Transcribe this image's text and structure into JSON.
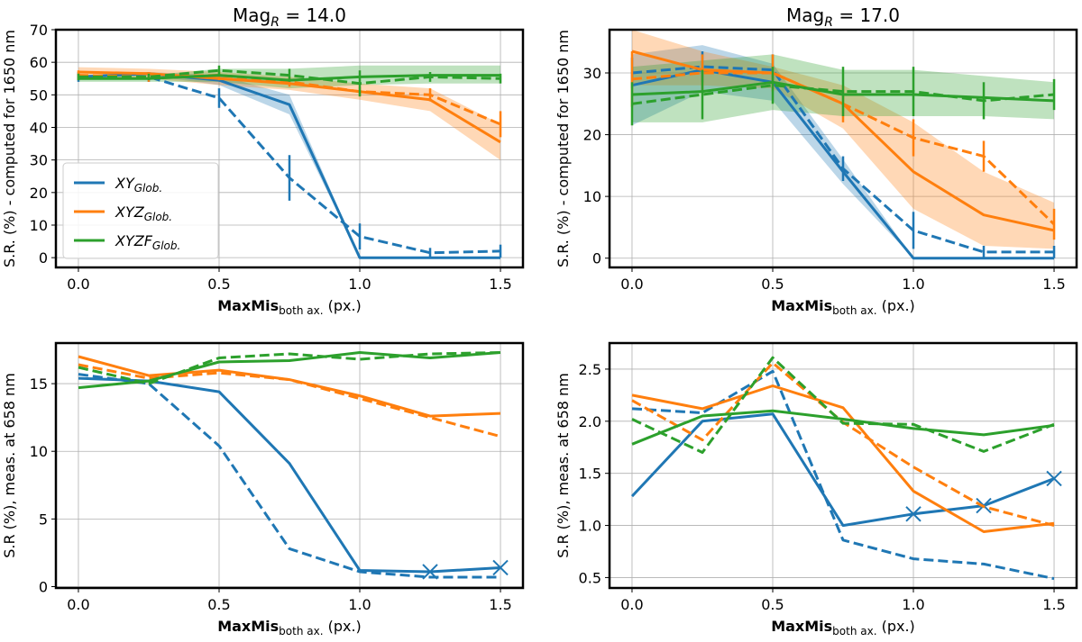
{
  "colors": {
    "blue": "#1f77b4",
    "orange": "#ff7f0e",
    "green": "#2ca02c",
    "grid": "#b0b0b0"
  },
  "legend": [
    {
      "name": "XY",
      "sub": "Glob.",
      "color": "#1f77b4"
    },
    {
      "name": "XYZ",
      "sub": "Glob.",
      "color": "#ff7f0e"
    },
    {
      "name": "XYZF",
      "sub": "Glob.",
      "color": "#2ca02c"
    }
  ],
  "chart_data": [
    {
      "id": "top-left",
      "type": "line",
      "title": {
        "main": "Mag",
        "sub": "R",
        "rest": " = 14.0"
      },
      "xlabel": {
        "bold": "MaxMis",
        "sub": "both ax.",
        "rest": " (px.)"
      },
      "ylabel": "S.R. (%) - computed for 1650 nm",
      "xlim": [
        -0.08,
        1.58
      ],
      "ylim": [
        -3,
        70
      ],
      "xticks": [
        0.0,
        0.5,
        1.0,
        1.5
      ],
      "xtick_labels": [
        "0.0",
        "0.5",
        "1.0",
        "1.5"
      ],
      "yticks": [
        0,
        10,
        20,
        30,
        40,
        50,
        60,
        70
      ],
      "ytick_labels": [
        "0",
        "10",
        "20",
        "30",
        "40",
        "50",
        "60",
        "70"
      ],
      "x": [
        0.0,
        0.25,
        0.5,
        0.75,
        1.0,
        1.25,
        1.5
      ],
      "series": [
        {
          "name": "XY solid",
          "color": "blue",
          "dashed": false,
          "values": [
            55.5,
            56.5,
            54.5,
            47,
            0,
            0,
            0
          ],
          "band_lo": [
            55,
            56,
            53,
            44,
            0,
            0,
            0
          ],
          "band_hi": [
            56,
            57,
            56,
            50,
            0,
            0,
            0
          ]
        },
        {
          "name": "XY dashed",
          "color": "blue",
          "dashed": true,
          "values": [
            55.5,
            55.5,
            49,
            24.5,
            6.5,
            1.5,
            2
          ],
          "err": [
            1.5,
            1.5,
            3,
            7,
            4,
            1.5,
            2
          ]
        },
        {
          "name": "XYZ solid",
          "color": "orange",
          "dashed": false,
          "values": [
            57,
            56.5,
            55,
            53.5,
            51,
            48.5,
            35.5
          ],
          "band_lo": [
            55.5,
            55,
            53,
            51.5,
            48.5,
            45,
            30
          ],
          "band_hi": [
            58.5,
            58,
            57,
            55.5,
            53.5,
            52,
            41
          ]
        },
        {
          "name": "XYZ dashed",
          "color": "orange",
          "dashed": true,
          "values": [
            56,
            55.5,
            56,
            54,
            51,
            50,
            41
          ],
          "err": [
            1.5,
            1.5,
            1.5,
            1.5,
            1.5,
            2,
            4
          ]
        },
        {
          "name": "XYZF solid",
          "color": "green",
          "dashed": false,
          "values": [
            55,
            55,
            56,
            54.5,
            55.5,
            56,
            56
          ],
          "band_lo": [
            54,
            54,
            54,
            52,
            53,
            53.5,
            53.5
          ],
          "band_hi": [
            56,
            56,
            58,
            58,
            59,
            59,
            59
          ]
        },
        {
          "name": "XYZF dashed",
          "color": "green",
          "dashed": true,
          "values": [
            55.5,
            55.5,
            57.5,
            56,
            53.5,
            55.5,
            55
          ],
          "err": [
            1,
            1,
            1.5,
            2,
            4,
            1.5,
            1.5
          ]
        }
      ],
      "legend": true
    },
    {
      "id": "top-right",
      "type": "line",
      "title": {
        "main": "Mag",
        "sub": "R",
        "rest": " = 17.0"
      },
      "xlabel": {
        "bold": "MaxMis",
        "sub": "both ax.",
        "rest": " (px.)"
      },
      "ylabel": "S.R. (%) - computed for 1650 nm",
      "xlim": [
        -0.08,
        1.58
      ],
      "ylim": [
        -1.5,
        37
      ],
      "xticks": [
        0.0,
        0.5,
        1.0,
        1.5
      ],
      "xtick_labels": [
        "0.0",
        "0.5",
        "1.0",
        "1.5"
      ],
      "yticks": [
        0,
        10,
        20,
        30
      ],
      "ytick_labels": [
        "0",
        "10",
        "20",
        "30"
      ],
      "x": [
        0.0,
        0.25,
        0.5,
        0.75,
        1.0,
        1.25,
        1.5
      ],
      "series": [
        {
          "name": "XY solid",
          "color": "blue",
          "dashed": false,
          "values": [
            28,
            30.5,
            28.5,
            14,
            0,
            0,
            0
          ],
          "band_lo": [
            21.5,
            27,
            25.5,
            12,
            0,
            0,
            0
          ],
          "band_hi": [
            33,
            34.5,
            31.5,
            16,
            0,
            0,
            0
          ]
        },
        {
          "name": "XY dashed",
          "color": "blue",
          "dashed": true,
          "values": [
            30,
            31,
            30.5,
            14.5,
            4.5,
            1,
            1
          ],
          "err": [
            2.5,
            2.5,
            2.5,
            2,
            3,
            1,
            1
          ]
        },
        {
          "name": "XYZ solid",
          "color": "orange",
          "dashed": false,
          "values": [
            33.5,
            30.5,
            30,
            25,
            14,
            7,
            4.5
          ],
          "band_lo": [
            28,
            28,
            27.5,
            21,
            8,
            2,
            1.5
          ],
          "band_hi": [
            37,
            33.5,
            31,
            28,
            22,
            14,
            9
          ]
        },
        {
          "name": "XYZ dashed",
          "color": "orange",
          "dashed": true,
          "values": [
            29,
            30,
            30,
            25,
            19.5,
            16.5,
            5.5
          ],
          "err": [
            4.5,
            3,
            3,
            3,
            3,
            2.5,
            2.5
          ]
        },
        {
          "name": "XYZF solid",
          "color": "green",
          "dashed": false,
          "values": [
            26.5,
            27,
            28.5,
            26.5,
            26.5,
            26,
            25.5
          ],
          "band_lo": [
            22,
            22,
            24,
            23,
            23,
            23,
            22.5
          ],
          "band_hi": [
            31,
            32,
            33,
            30.5,
            30.5,
            29.5,
            28.5
          ]
        },
        {
          "name": "XYZF dashed",
          "color": "green",
          "dashed": true,
          "values": [
            25,
            26.5,
            28,
            27,
            27,
            25.5,
            26.5
          ],
          "err": [
            3.5,
            4,
            3,
            4,
            4,
            3,
            2.5
          ]
        }
      ],
      "legend": false
    },
    {
      "id": "bottom-left",
      "type": "line",
      "title": null,
      "xlabel": {
        "bold": "MaxMis",
        "sub": "both ax.",
        "rest": " (px.)"
      },
      "ylabel": "S.R (%), meas. at 658 nm",
      "xlim": [
        -0.08,
        1.58
      ],
      "ylim": [
        -0.1,
        18
      ],
      "xticks": [
        0.0,
        0.5,
        1.0,
        1.5
      ],
      "xtick_labels": [
        "0.0",
        "0.5",
        "1.0",
        "1.5"
      ],
      "yticks": [
        0,
        5,
        10,
        15
      ],
      "ytick_labels": [
        "0",
        "5",
        "10",
        "15"
      ],
      "x": [
        0.0,
        0.25,
        0.5,
        0.75,
        1.0,
        1.25,
        1.5
      ],
      "series": [
        {
          "name": "XY solid",
          "color": "blue",
          "dashed": false,
          "values": [
            15.4,
            15.2,
            14.4,
            9.1,
            1.2,
            1.1,
            1.4
          ],
          "markers": [
            5,
            6
          ]
        },
        {
          "name": "XY dashed",
          "color": "blue",
          "dashed": true,
          "values": [
            15.7,
            15.0,
            10.4,
            2.8,
            1.1,
            0.7,
            0.7
          ]
        },
        {
          "name": "XYZ solid",
          "color": "orange",
          "dashed": false,
          "values": [
            17.0,
            15.6,
            16.0,
            15.3,
            14.1,
            12.6,
            12.8
          ]
        },
        {
          "name": "XYZ dashed",
          "color": "orange",
          "dashed": true,
          "values": [
            16.4,
            15.4,
            15.8,
            15.3,
            13.9,
            12.5,
            11.1
          ]
        },
        {
          "name": "XYZF solid",
          "color": "green",
          "dashed": false,
          "values": [
            14.7,
            15.2,
            16.6,
            16.7,
            17.3,
            16.9,
            17.3
          ]
        },
        {
          "name": "XYZF dashed",
          "color": "green",
          "dashed": true,
          "values": [
            16.2,
            15.0,
            16.9,
            17.2,
            16.8,
            17.2,
            17.3
          ]
        }
      ],
      "legend": false
    },
    {
      "id": "bottom-right",
      "type": "line",
      "title": null,
      "xlabel": {
        "bold": "MaxMis",
        "sub": "both ax.",
        "rest": " (px.)"
      },
      "ylabel": "S.R (%), meas. at 658 nm",
      "xlim": [
        -0.08,
        1.58
      ],
      "ylim": [
        0.4,
        2.75
      ],
      "xticks": [
        0.0,
        0.5,
        1.0,
        1.5
      ],
      "xtick_labels": [
        "0.0",
        "0.5",
        "1.0",
        "1.5"
      ],
      "yticks": [
        0.5,
        1.0,
        1.5,
        2.0,
        2.5
      ],
      "ytick_labels": [
        "0.5",
        "1.0",
        "1.5",
        "2.0",
        "2.5"
      ],
      "x": [
        0.0,
        0.25,
        0.5,
        0.75,
        1.0,
        1.25,
        1.5
      ],
      "series": [
        {
          "name": "XY solid",
          "color": "blue",
          "dashed": false,
          "values": [
            1.28,
            2.0,
            2.07,
            1.0,
            1.11,
            1.19,
            1.45
          ],
          "markers": [
            4,
            5,
            6
          ]
        },
        {
          "name": "XY dashed",
          "color": "blue",
          "dashed": true,
          "values": [
            2.12,
            2.08,
            2.48,
            0.86,
            0.68,
            0.63,
            0.49
          ]
        },
        {
          "name": "XYZ solid",
          "color": "orange",
          "dashed": false,
          "values": [
            2.25,
            2.12,
            2.34,
            2.13,
            1.33,
            0.94,
            1.02
          ]
        },
        {
          "name": "XYZ dashed",
          "color": "orange",
          "dashed": true,
          "values": [
            2.2,
            1.82,
            2.56,
            1.99,
            1.56,
            1.18,
            1.0
          ]
        },
        {
          "name": "XYZF solid",
          "color": "green",
          "dashed": false,
          "values": [
            1.78,
            2.05,
            2.1,
            2.02,
            1.93,
            1.87,
            1.96
          ]
        },
        {
          "name": "XYZF dashed",
          "color": "green",
          "dashed": true,
          "values": [
            2.02,
            1.7,
            2.61,
            1.98,
            1.97,
            1.71,
            1.97
          ]
        }
      ],
      "legend": false
    }
  ]
}
